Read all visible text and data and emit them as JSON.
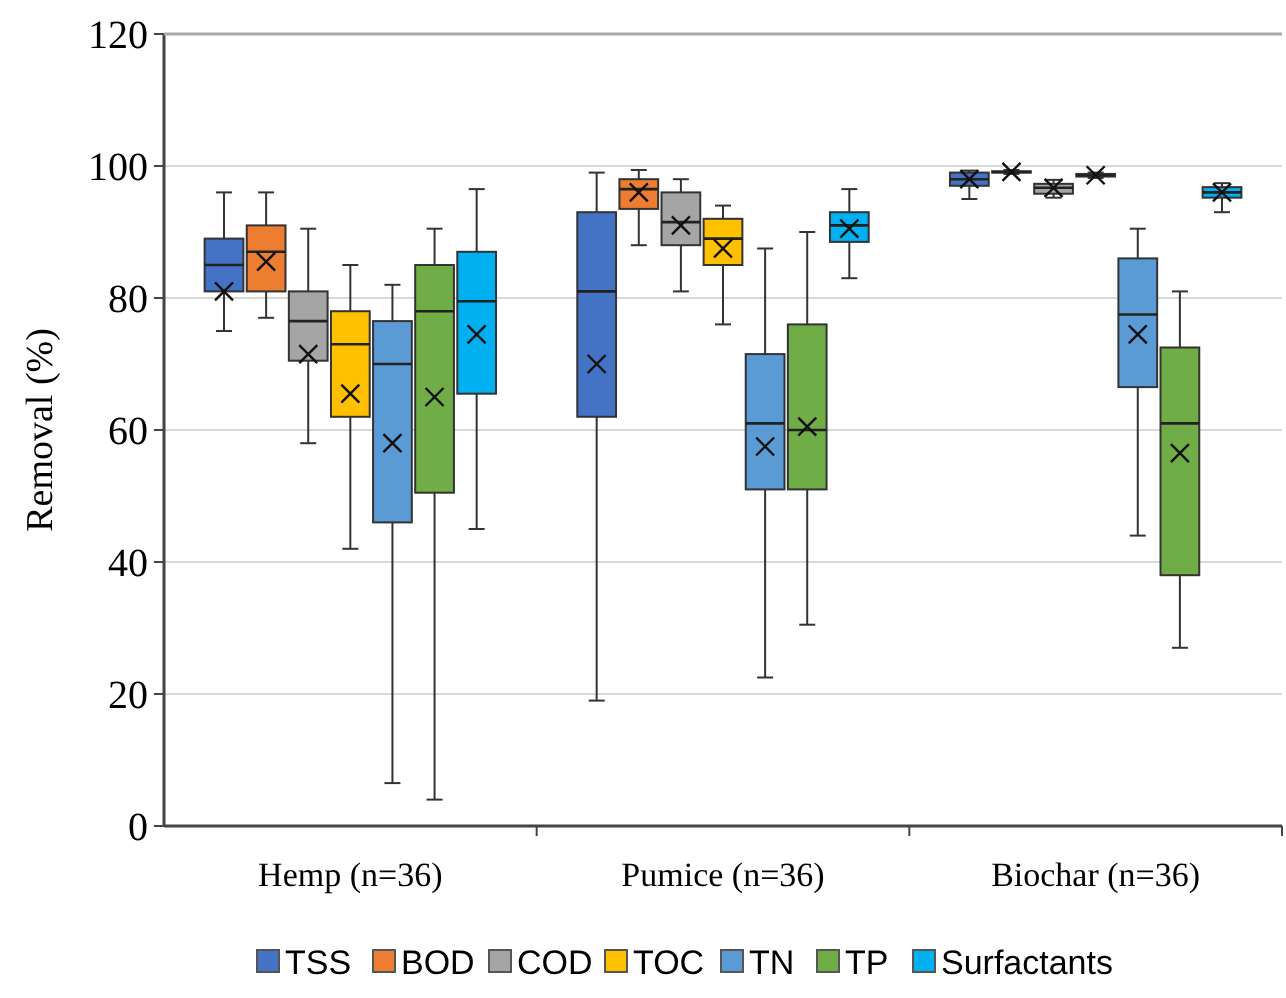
{
  "chart_data": {
    "type": "box",
    "ylabel": "Removal (%)",
    "categories": [
      "Hemp (n=36)",
      "Pumice (n=36)",
      "Biochar (n=36)"
    ],
    "ylim": [
      0,
      120
    ],
    "yticks": [
      0,
      20,
      40,
      60,
      80,
      100,
      120
    ],
    "grid": "y",
    "legend": "bottom",
    "marker": "cross",
    "series": [
      {
        "name": "TSS",
        "color": "#4472c4",
        "boxes": [
          {
            "low": 75,
            "q1": 81,
            "median": 85,
            "q3": 89,
            "high": 96,
            "mean": 81
          },
          {
            "low": 19,
            "q1": 62,
            "median": 81,
            "q3": 93,
            "high": 99,
            "mean": 70
          },
          {
            "low": 95,
            "q1": 97,
            "median": 98,
            "q3": 99,
            "high": 99.3,
            "mean": 98
          }
        ]
      },
      {
        "name": "BOD",
        "color": "#ed7d31",
        "boxes": [
          {
            "low": 77,
            "q1": 81,
            "median": 87,
            "q3": 91,
            "high": 96,
            "mean": 85.5
          },
          {
            "low": 88,
            "q1": 93.5,
            "median": 96.5,
            "q3": 98,
            "high": 99.4,
            "mean": 96
          },
          {
            "low": 98.8,
            "q1": 99,
            "median": 99.1,
            "q3": 99.2,
            "high": 99.4,
            "mean": 99.1
          }
        ]
      },
      {
        "name": "COD",
        "color": "#a5a5a5",
        "boxes": [
          {
            "low": 58,
            "q1": 70.5,
            "median": 76.5,
            "q3": 81,
            "high": 90.5,
            "mean": 71.5
          },
          {
            "low": 81,
            "q1": 88,
            "median": 91.5,
            "q3": 96,
            "high": 98,
            "mean": 91
          },
          {
            "low": 95.2,
            "q1": 95.8,
            "median": 96.7,
            "q3": 97.3,
            "high": 97.9,
            "mean": 96.7
          }
        ]
      },
      {
        "name": "TOC",
        "color": "#ffc000",
        "boxes": [
          {
            "low": 42,
            "q1": 62,
            "median": 73,
            "q3": 78,
            "high": 85,
            "mean": 65.5
          },
          {
            "low": 76,
            "q1": 85,
            "median": 89,
            "q3": 92,
            "high": 94,
            "mean": 87.5
          },
          {
            "low": 98.2,
            "q1": 98.4,
            "median": 98.6,
            "q3": 98.8,
            "high": 99,
            "mean": 98.6
          }
        ]
      },
      {
        "name": "TN",
        "color": "#5b9bd5",
        "boxes": [
          {
            "low": 6.5,
            "q1": 46,
            "median": 70,
            "q3": 76.5,
            "high": 82,
            "mean": 58
          },
          {
            "low": 22.5,
            "q1": 51,
            "median": 61,
            "q3": 71.5,
            "high": 87.5,
            "mean": 57.5
          },
          {
            "low": 44,
            "q1": 66.5,
            "median": 77.5,
            "q3": 86,
            "high": 90.5,
            "mean": 74.5
          }
        ]
      },
      {
        "name": "TP",
        "color": "#70ad47",
        "boxes": [
          {
            "low": 4,
            "q1": 50.5,
            "median": 78,
            "q3": 85,
            "high": 90.5,
            "mean": 65
          },
          {
            "low": 30.5,
            "q1": 51,
            "median": 60,
            "q3": 76,
            "high": 90,
            "mean": 60.5
          },
          {
            "low": 27,
            "q1": 38,
            "median": 61,
            "q3": 72.5,
            "high": 81,
            "mean": 56.5
          }
        ]
      },
      {
        "name": "Surfactants",
        "color": "#00b0f0",
        "boxes": [
          {
            "low": 45,
            "q1": 65.5,
            "median": 79.5,
            "q3": 87,
            "high": 96.5,
            "mean": 74.5
          },
          {
            "low": 83,
            "q1": 88.5,
            "median": 91,
            "q3": 93,
            "high": 96.5,
            "mean": 90.5
          },
          {
            "low": 93,
            "q1": 95.2,
            "median": 96,
            "q3": 96.8,
            "high": 97.4,
            "mean": 96
          }
        ]
      }
    ]
  }
}
